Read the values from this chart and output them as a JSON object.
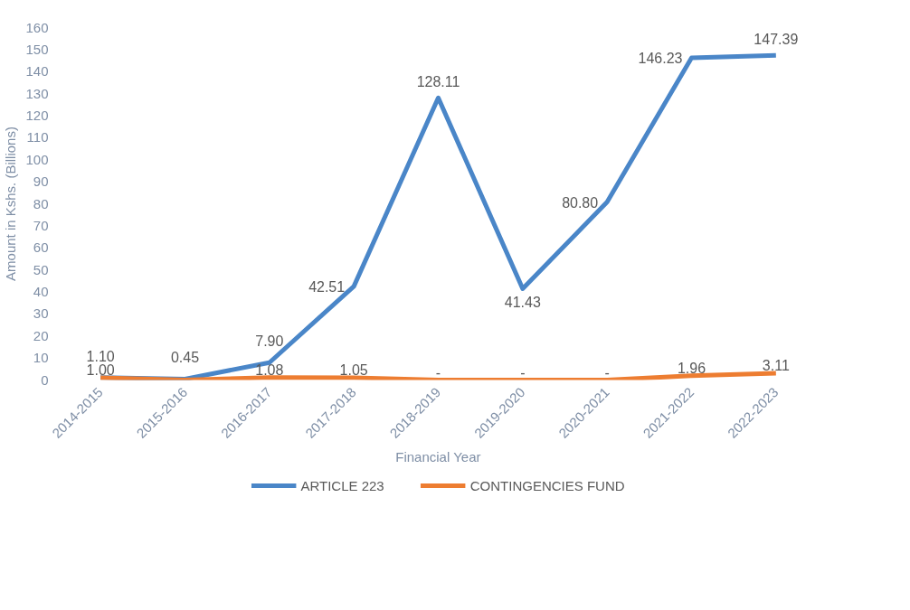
{
  "chart_data": {
    "type": "line",
    "xlabel": "Financial Year",
    "ylabel": "Amount in Kshs. (Billions)",
    "categories": [
      "2014-2015",
      "2015-2016",
      "2016-2017",
      "2017-2018",
      "2018-2019",
      "2019-2020",
      "2020-2021",
      "2021-2022",
      "2022-2023"
    ],
    "series": [
      {
        "name": "ARTICLE 223",
        "color": "#4a86c8",
        "values": [
          1.1,
          0.45,
          7.9,
          42.51,
          128.11,
          41.43,
          80.8,
          146.23,
          147.39
        ],
        "value_labels": [
          "1.10",
          "0.45",
          "7.90",
          "42.51",
          "128.11",
          "41.43",
          "80.80",
          "146.23",
          "147.39"
        ]
      },
      {
        "name": "CONTINGENCIES FUND",
        "color": "#ed7d31",
        "values": [
          1.0,
          0,
          1.08,
          1.05,
          0,
          0,
          0,
          1.96,
          3.11
        ],
        "value_labels": [
          "1.00",
          null,
          "1.08",
          "1.05",
          "-",
          "-",
          "-",
          "1.96",
          "3.11"
        ]
      }
    ],
    "ylim": [
      0,
      160
    ],
    "yticks": [
      0,
      10,
      20,
      30,
      40,
      50,
      60,
      70,
      80,
      90,
      100,
      110,
      120,
      130,
      140,
      150,
      160
    ],
    "grid": false,
    "legend": "bottom",
    "marker": "none",
    "line_style": "solid"
  }
}
